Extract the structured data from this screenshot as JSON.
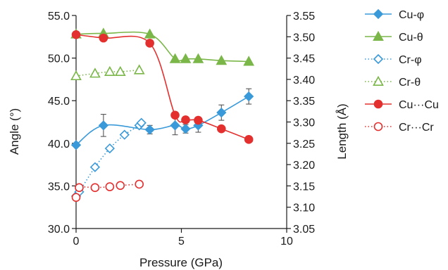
{
  "chart_data": {
    "type": "scatter",
    "title": "",
    "xlabel": "Pressure (GPa)",
    "ylabel_left": "Angle (°)",
    "ylabel_right": "Length (Å)",
    "xlim": [
      0,
      10
    ],
    "ylim_left": [
      30,
      55
    ],
    "ylim_right": [
      3.05,
      3.55
    ],
    "x_ticks": [
      "0",
      "5",
      "10"
    ],
    "y_left_ticks": [
      "30.0",
      "35.0",
      "40.0",
      "45.0",
      "50.0",
      "55.0"
    ],
    "y_right_ticks": [
      "3.05",
      "3.10",
      "3.15",
      "3.20",
      "3.25",
      "3.30",
      "3.35",
      "3.40",
      "3.45",
      "3.50",
      "3.55"
    ],
    "grid": false,
    "legend_position": "right",
    "series": [
      {
        "name": "Cu-φ",
        "axis": "left",
        "color": "#3a9ad9",
        "marker": "diamond",
        "filled": true,
        "line": "solid",
        "points": [
          {
            "x": 0.0,
            "y": 39.8
          },
          {
            "x": 1.3,
            "y": 42.1,
            "err": 1.3
          },
          {
            "x": 3.5,
            "y": 41.6,
            "err": 0.5
          },
          {
            "x": 4.7,
            "y": 42.1,
            "err": 1.1
          },
          {
            "x": 5.2,
            "y": 41.7,
            "err": 0.5
          },
          {
            "x": 5.8,
            "y": 42.1,
            "err": 0.8
          },
          {
            "x": 6.9,
            "y": 43.6,
            "err": 0.9
          },
          {
            "x": 8.2,
            "y": 45.5,
            "err": 0.9
          }
        ]
      },
      {
        "name": "Cu-θ",
        "axis": "left",
        "color": "#7ab648",
        "marker": "triangle",
        "filled": true,
        "line": "solid",
        "points": [
          {
            "x": 0.0,
            "y": 52.8
          },
          {
            "x": 1.3,
            "y": 52.9
          },
          {
            "x": 3.5,
            "y": 52.8
          },
          {
            "x": 4.7,
            "y": 49.9
          },
          {
            "x": 5.2,
            "y": 49.9
          },
          {
            "x": 5.8,
            "y": 49.9
          },
          {
            "x": 6.9,
            "y": 49.7
          },
          {
            "x": 8.2,
            "y": 49.6
          }
        ]
      },
      {
        "name": "Cr-φ",
        "axis": "left",
        "color": "#3a9ad9",
        "marker": "diamond",
        "filled": false,
        "line": "dotted",
        "points": [
          {
            "x": 0.0,
            "y": 33.8
          },
          {
            "x": 0.15,
            "y": 34.3
          },
          {
            "x": 0.9,
            "y": 37.2
          },
          {
            "x": 1.6,
            "y": 39.4
          },
          {
            "x": 2.3,
            "y": 41.0
          },
          {
            "x": 3.0,
            "y": 42.1
          },
          {
            "x": 3.1,
            "y": 42.4
          }
        ]
      },
      {
        "name": "Cr-θ",
        "axis": "left",
        "color": "#7ab648",
        "marker": "triangle",
        "filled": false,
        "line": "dotted",
        "points": [
          {
            "x": 0.0,
            "y": 47.9
          },
          {
            "x": 0.9,
            "y": 48.2
          },
          {
            "x": 1.6,
            "y": 48.4
          },
          {
            "x": 2.1,
            "y": 48.4
          },
          {
            "x": 3.0,
            "y": 48.6
          }
        ]
      },
      {
        "name": "Cu···Cu",
        "axis": "right",
        "color": "#e3302f",
        "marker": "circle",
        "filled": true,
        "line": "solid",
        "points": [
          {
            "x": 0.0,
            "y": 3.505
          },
          {
            "x": 1.3,
            "y": 3.497
          },
          {
            "x": 3.5,
            "y": 3.485
          },
          {
            "x": 4.7,
            "y": 3.316
          },
          {
            "x": 5.2,
            "y": 3.305
          },
          {
            "x": 5.8,
            "y": 3.304
          },
          {
            "x": 6.9,
            "y": 3.284
          },
          {
            "x": 8.2,
            "y": 3.259
          }
        ]
      },
      {
        "name": "Cr···Cr",
        "axis": "right",
        "color": "#e3302f",
        "marker": "circle",
        "filled": false,
        "line": "dotted",
        "points": [
          {
            "x": 0.0,
            "y": 3.123
          },
          {
            "x": 0.15,
            "y": 3.146
          },
          {
            "x": 0.9,
            "y": 3.146
          },
          {
            "x": 1.6,
            "y": 3.148
          },
          {
            "x": 2.1,
            "y": 3.151
          },
          {
            "x": 3.0,
            "y": 3.154
          }
        ]
      }
    ]
  }
}
